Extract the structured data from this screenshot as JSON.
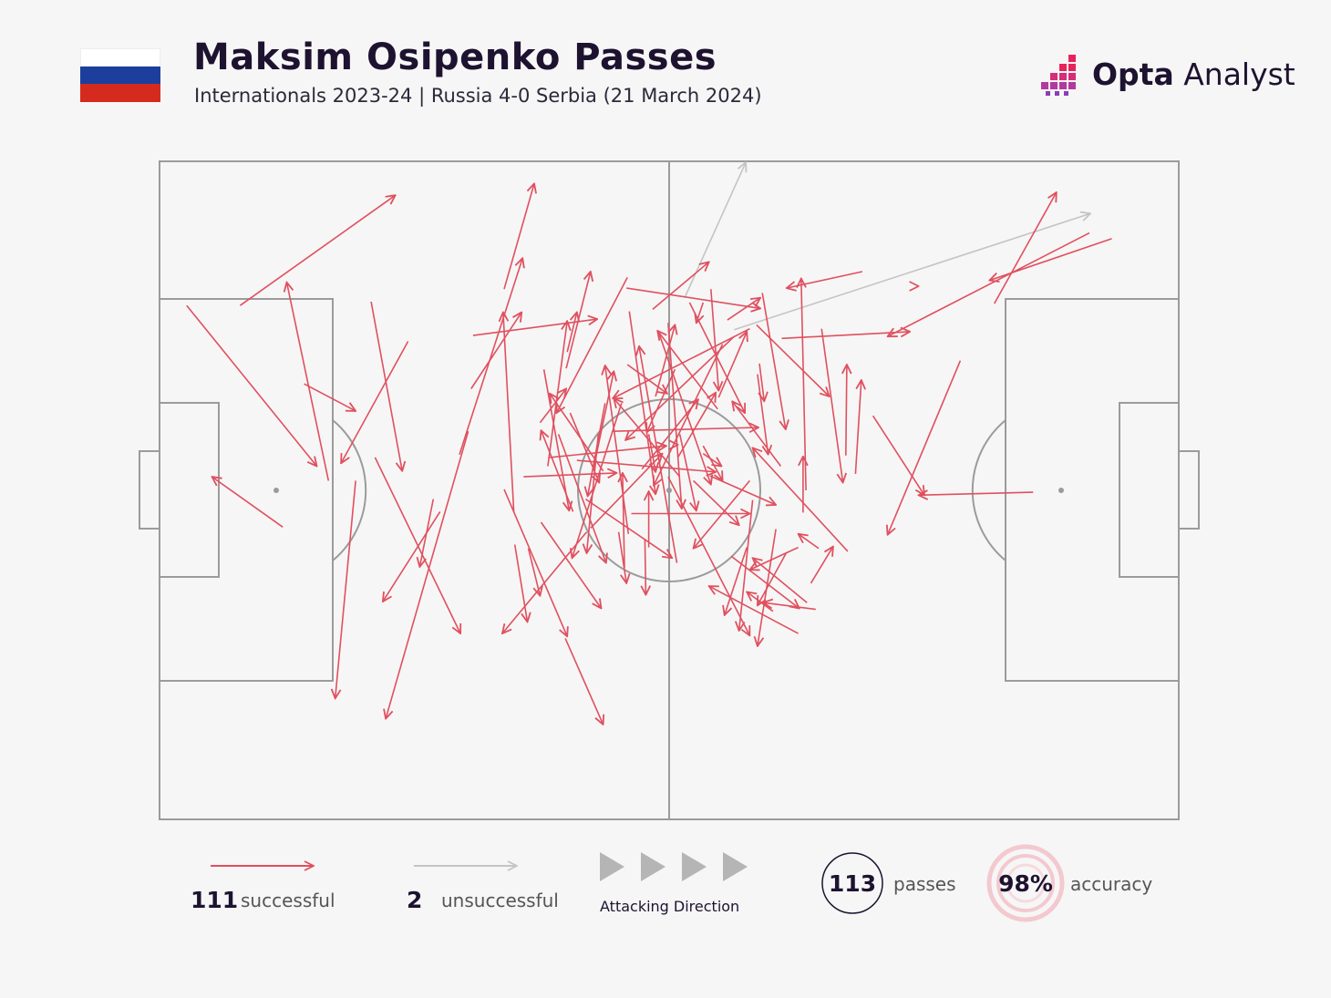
{
  "header": {
    "title": "Maksim Osipenko Passes",
    "subtitle": "Internationals 2023-24 | Russia 4-0 Serbia (21 March 2024)",
    "brand_bold": "Opta",
    "brand_light": " Analyst",
    "flag_colors": [
      "#ffffff",
      "#1c3f9e",
      "#d52b1e"
    ]
  },
  "colors": {
    "successful": "#e0505f",
    "unsuccessful": "#c4c4c4",
    "pitch_lines": "#9b9b9b",
    "background": "#f6f6f6",
    "accent_ring": "#f3c9cf"
  },
  "chart_data": {
    "type": "pass_map",
    "pitch_length": 105,
    "pitch_width": 68,
    "attacking_direction": "left-to-right",
    "successful_passes": [
      [
        12.7,
        37.8,
        5.4,
        32.6
      ],
      [
        2.8,
        14.9,
        16.2,
        31.5
      ],
      [
        8.3,
        14.9,
        24.3,
        3.5
      ],
      [
        25.6,
        18.6,
        18.7,
        31.2
      ],
      [
        35.5,
        13.2,
        38.6,
        2.3
      ],
      [
        14.9,
        23.0,
        20.2,
        25.8
      ],
      [
        32.1,
        23.5,
        37.3,
        15.6
      ],
      [
        31.8,
        27.9,
        23.3,
        57.6
      ],
      [
        17.4,
        33.0,
        13.1,
        12.5
      ],
      [
        20.2,
        33.0,
        18.1,
        55.5
      ],
      [
        28.9,
        36.2,
        23.0,
        45.5
      ],
      [
        22.2,
        30.6,
        31.0,
        48.8
      ],
      [
        21.8,
        14.5,
        25.0,
        32.0
      ],
      [
        30.9,
        30.3,
        37.4,
        10.0
      ],
      [
        36.5,
        36.2,
        35.4,
        15.6
      ],
      [
        41.9,
        21.4,
        44.4,
        11.4
      ],
      [
        42.6,
        36.2,
        39.3,
        27.8
      ],
      [
        44.0,
        38.3,
        35.3,
        48.8
      ],
      [
        41.1,
        28.2,
        46.0,
        41.5
      ],
      [
        39.3,
        37.3,
        45.5,
        46.2
      ],
      [
        40.0,
        31.5,
        42.0,
        16.5
      ],
      [
        45.9,
        25.0,
        44.1,
        34.6
      ],
      [
        37.5,
        32.6,
        47.1,
        32.2
      ],
      [
        32.3,
        18.0,
        45.1,
        16.3
      ],
      [
        39.6,
        21.5,
        42.2,
        36.1
      ],
      [
        48.3,
        38.5,
        45.9,
        21.1
      ],
      [
        50.4,
        28.2,
        51.1,
        32.1
      ],
      [
        51.1,
        24.3,
        53.1,
        16.9
      ],
      [
        53.4,
        29.3,
        53.4,
        29.3
      ],
      [
        56.0,
        30.2,
        57.9,
        31.5
      ],
      [
        55.0,
        33.0,
        59.7,
        37.6
      ],
      [
        48.6,
        36.4,
        60.8,
        36.4
      ],
      [
        43.0,
        30.9,
        57.3,
        32.1
      ],
      [
        46.7,
        27.9,
        61.7,
        27.5
      ],
      [
        58.0,
        18.9,
        50.9,
        33.5
      ],
      [
        56.0,
        14.6,
        55.3,
        16.7
      ],
      [
        48.1,
        13.1,
        61.9,
        15.2
      ],
      [
        58.5,
        16.4,
        61.9,
        14.1
      ],
      [
        60.8,
        17.3,
        46.7,
        24.5
      ],
      [
        57.5,
        25.6,
        51.3,
        17.5
      ],
      [
        53.3,
        41.5,
        49.4,
        19.1
      ],
      [
        61.1,
        35.0,
        59.7,
        48.5
      ],
      [
        63.5,
        38.0,
        61.6,
        50.1
      ],
      [
        66.6,
        34.0,
        66.1,
        12.1
      ],
      [
        72.4,
        11.4,
        64.6,
        13.1
      ],
      [
        64.1,
        18.3,
        77.3,
        17.6
      ],
      [
        78.2,
        12.9,
        78.2,
        12.9
      ],
      [
        82.5,
        20.6,
        75.0,
        38.6
      ],
      [
        86.0,
        14.7,
        92.4,
        3.2
      ],
      [
        95.8,
        7.4,
        75.0,
        18.1
      ],
      [
        98.1,
        8.0,
        85.5,
        12.3
      ],
      [
        90.0,
        34.2,
        78.2,
        34.5
      ],
      [
        73.5,
        26.3,
        78.8,
        34.5
      ],
      [
        71.7,
        32.3,
        72.3,
        22.6
      ],
      [
        65.8,
        39.9,
        60.8,
        42.2
      ],
      [
        65.8,
        48.8,
        56.6,
        43.9
      ],
      [
        66.7,
        45.6,
        61.1,
        41.0
      ],
      [
        67.9,
        40.0,
        65.8,
        38.5
      ],
      [
        70.9,
        40.3,
        61.1,
        29.6
      ],
      [
        67.6,
        46.3,
        62.2,
        45.6
      ],
      [
        67.1,
        43.6,
        69.4,
        39.8
      ],
      [
        66.3,
        36.3,
        66.3,
        30.5
      ],
      [
        53.6,
        28.2,
        55.3,
        36.1
      ],
      [
        48.4,
        15.5,
        51.1,
        34.4
      ],
      [
        52.4,
        32.6,
        60.8,
        49.0
      ],
      [
        60.8,
        33.0,
        55.0,
        40.0
      ],
      [
        50.4,
        39.9,
        50.4,
        34.1
      ],
      [
        47.9,
        42.0,
        47.7,
        32.2
      ],
      [
        41.8,
        49.3,
        45.7,
        58.2
      ],
      [
        35.5,
        33.9,
        42.0,
        49.1
      ],
      [
        39.2,
        27.0,
        41.9,
        23.5
      ],
      [
        56.7,
        32.5,
        63.5,
        35.5
      ],
      [
        53.4,
        30.6,
        57.3,
        23.9
      ],
      [
        60.5,
        39.9,
        58.2,
        46.9
      ],
      [
        57.6,
        24.4,
        60.5,
        17.6
      ],
      [
        64.0,
        31.5,
        59.0,
        24.8
      ],
      [
        50.8,
        15.3,
        56.6,
        10.4
      ],
      [
        44.7,
        31.8,
        46.8,
        21.7
      ],
      [
        42.3,
        26.0,
        45.3,
        33.2
      ],
      [
        70.7,
        30.4,
        70.8,
        21.0
      ],
      [
        61.5,
        16.9,
        69.0,
        24.3
      ],
      [
        61.8,
        20.9,
        62.3,
        24.8
      ],
      [
        45.7,
        32.0,
        40.2,
        24.0
      ],
      [
        43.9,
        34.9,
        52.8,
        41.0
      ],
      [
        40.2,
        30.6,
        52.2,
        29.4
      ],
      [
        42.0,
        19.7,
        43.0,
        15.6
      ],
      [
        48.2,
        12.0,
        40.9,
        26.0
      ],
      [
        48.2,
        21.0,
        52.3,
        24.0
      ],
      [
        49.7,
        31.8,
        55.5,
        24.6
      ],
      [
        56.0,
        29.4,
        58.0,
        33.0
      ],
      [
        54.6,
        14.6,
        60.3,
        26.0
      ],
      [
        53.1,
        21.5,
        50.2,
        28.0
      ],
      [
        38.0,
        40.0,
        39.2,
        44.9
      ],
      [
        44.4,
        37.9,
        51.8,
        30.2
      ],
      [
        36.6,
        39.6,
        37.9,
        47.6
      ],
      [
        28.2,
        34.9,
        26.8,
        41.9
      ],
      [
        47.3,
        38.3,
        48.1,
        43.6
      ],
      [
        52.4,
        16.7,
        53.8,
        35.9
      ],
      [
        56.8,
        13.2,
        57.6,
        23.7
      ],
      [
        61.6,
        22.0,
        62.7,
        30.3
      ],
      [
        62.1,
        13.6,
        64.5,
        27.7
      ],
      [
        68.2,
        17.3,
        70.4,
        33.2
      ],
      [
        53.6,
        32.6,
        46.8,
        24.5
      ],
      [
        59.2,
        18.1,
        48.0,
        28.8
      ],
      [
        47.6,
        25.0,
        42.5,
        41.0
      ],
      [
        45.2,
        28.2,
        44.0,
        40.5
      ],
      [
        50.0,
        39.0,
        50.1,
        44.8
      ],
      [
        63.2,
        46.5,
        60.5,
        44.5
      ],
      [
        58.9,
        40.8,
        65.9,
        46.2
      ],
      [
        64.6,
        40.4,
        61.6,
        45.9
      ],
      [
        51.4,
        17.6,
        56.8,
        33.4
      ]
    ],
    "unsuccessful_passes": [
      [
        54.1,
        14.1,
        60.4,
        0.1
      ],
      [
        59.2,
        17.4,
        95.9,
        5.4
      ]
    ],
    "legend": {
      "successful_count": "111",
      "successful_label": "successful",
      "unsuccessful_count": "2",
      "unsuccessful_label": "unsuccessful",
      "direction_label": "Attacking Direction"
    },
    "stats": {
      "passes_value": "113",
      "passes_label": "passes",
      "accuracy_value": "98%",
      "accuracy_label": "accuracy"
    }
  }
}
